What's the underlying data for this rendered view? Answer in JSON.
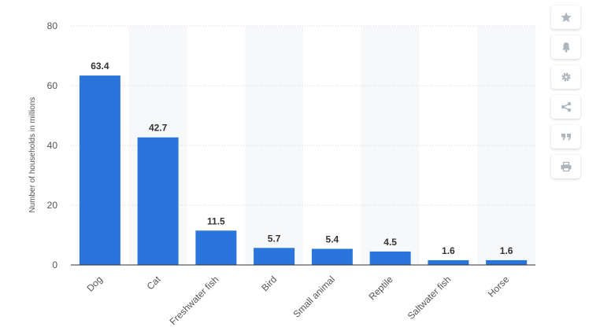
{
  "chart_data": {
    "type": "bar",
    "categories": [
      "Dog",
      "Cat",
      "Freshwater fish",
      "Bird",
      "Small animal",
      "Reptile",
      "Saltwater fish",
      "Horse"
    ],
    "values": [
      63.4,
      42.7,
      11.5,
      5.7,
      5.4,
      4.5,
      1.6,
      1.6
    ],
    "data_labels": [
      "63.4",
      "42.7",
      "11.5",
      "5.7",
      "5.4",
      "4.5",
      "1.6",
      "1.6"
    ],
    "ylabel": "Number of households in millions",
    "ylim": [
      0,
      80
    ],
    "yticks": [
      0,
      20,
      40,
      60,
      80
    ],
    "grid": true,
    "bar_color": "#2a75dc"
  },
  "toolbar": {
    "icons": [
      "star-icon",
      "bell-icon",
      "gear-icon",
      "share-icon",
      "quote-icon",
      "print-icon"
    ],
    "color": "#adb5bd"
  }
}
